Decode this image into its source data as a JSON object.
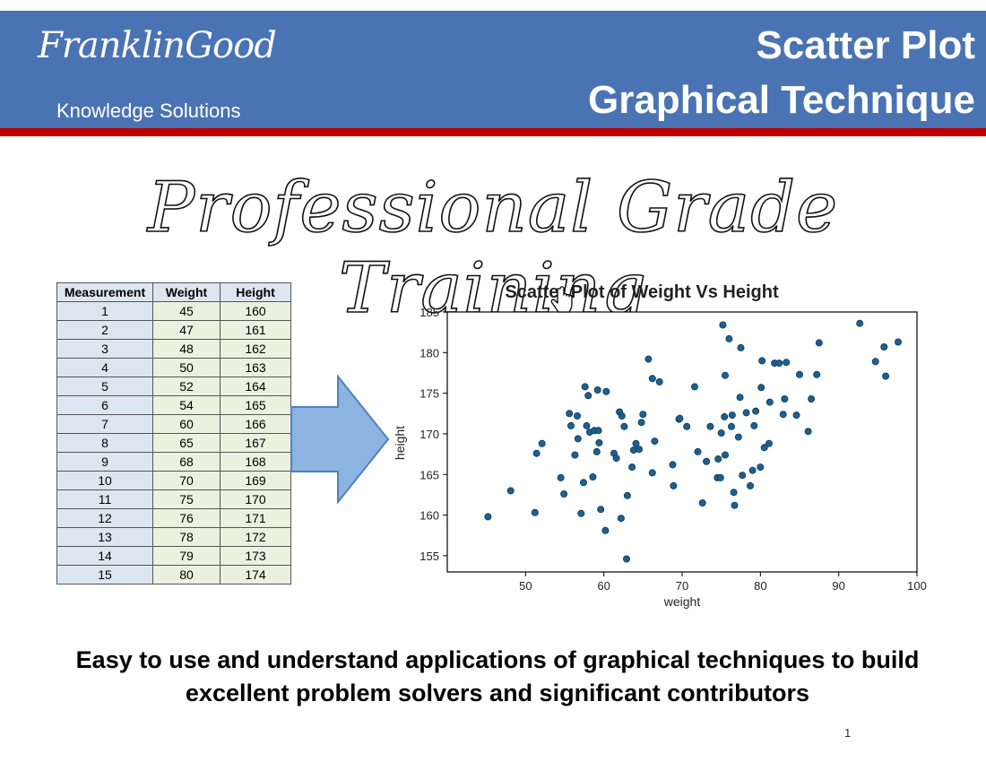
{
  "header": {
    "logo": "FranklinGood",
    "logo_subtitle": "Knowledge Solutions",
    "title_line1": "Scatter Plot",
    "title_line2": "Graphical Technique",
    "colors": {
      "band": "#4a73b3",
      "stripe": "#c00000"
    }
  },
  "banner": "Professional Grade Training",
  "table": {
    "headers": [
      "Measurement",
      "Weight",
      "Height"
    ],
    "rows": [
      [
        "1",
        "45",
        "160"
      ],
      [
        "2",
        "47",
        "161"
      ],
      [
        "3",
        "48",
        "162"
      ],
      [
        "4",
        "50",
        "163"
      ],
      [
        "5",
        "52",
        "164"
      ],
      [
        "6",
        "54",
        "165"
      ],
      [
        "7",
        "60",
        "166"
      ],
      [
        "8",
        "65",
        "167"
      ],
      [
        "9",
        "68",
        "168"
      ],
      [
        "10",
        "70",
        "169"
      ],
      [
        "11",
        "75",
        "170"
      ],
      [
        "12",
        "76",
        "171"
      ],
      [
        "13",
        "78",
        "172"
      ],
      [
        "14",
        "79",
        "173"
      ],
      [
        "15",
        "80",
        "174"
      ]
    ]
  },
  "chart_data": {
    "type": "scatter",
    "title": "Scatter Plot of Weight Vs Height",
    "xlabel": "weight",
    "ylabel": "height",
    "xlim": [
      40,
      100
    ],
    "ylim": [
      153,
      185
    ],
    "xticks": [
      50,
      60,
      70,
      80,
      90,
      100
    ],
    "yticks": [
      155,
      160,
      165,
      170,
      175,
      180,
      185
    ],
    "grid": false,
    "color": "#1f5f8f",
    "points": [
      [
        45.2,
        159.8
      ],
      [
        48.1,
        163.0
      ],
      [
        51.2,
        160.3
      ],
      [
        51.4,
        167.6
      ],
      [
        52.1,
        168.8
      ],
      [
        54.5,
        164.6
      ],
      [
        54.9,
        162.6
      ],
      [
        55.6,
        172.5
      ],
      [
        55.8,
        171.0
      ],
      [
        56.3,
        167.4
      ],
      [
        56.6,
        172.2
      ],
      [
        56.7,
        169.4
      ],
      [
        57.1,
        160.2
      ],
      [
        57.4,
        164.0
      ],
      [
        57.6,
        175.8
      ],
      [
        57.8,
        171.0
      ],
      [
        58.0,
        174.7
      ],
      [
        58.2,
        170.2
      ],
      [
        58.6,
        164.7
      ],
      [
        58.8,
        170.4
      ],
      [
        59.1,
        167.8
      ],
      [
        59.2,
        175.4
      ],
      [
        59.3,
        170.4
      ],
      [
        59.4,
        168.9
      ],
      [
        59.6,
        160.7
      ],
      [
        60.2,
        158.1
      ],
      [
        60.3,
        175.2
      ],
      [
        61.3,
        167.6
      ],
      [
        61.6,
        167.0
      ],
      [
        62.0,
        172.7
      ],
      [
        62.2,
        159.6
      ],
      [
        62.3,
        172.2
      ],
      [
        62.6,
        170.9
      ],
      [
        62.9,
        154.6
      ],
      [
        63.0,
        162.4
      ],
      [
        63.6,
        165.9
      ],
      [
        63.8,
        168.0
      ],
      [
        64.1,
        168.8
      ],
      [
        64.5,
        168.1
      ],
      [
        64.8,
        171.4
      ],
      [
        65.0,
        172.4
      ],
      [
        65.7,
        179.2
      ],
      [
        66.2,
        165.2
      ],
      [
        66.2,
        176.8
      ],
      [
        66.5,
        169.1
      ],
      [
        67.1,
        176.4
      ],
      [
        68.8,
        166.2
      ],
      [
        68.9,
        163.6
      ],
      [
        69.6,
        171.8
      ],
      [
        69.7,
        171.9
      ],
      [
        70.6,
        170.9
      ],
      [
        71.6,
        175.8
      ],
      [
        72.0,
        167.8
      ],
      [
        72.6,
        161.5
      ],
      [
        73.1,
        166.6
      ],
      [
        73.6,
        170.9
      ],
      [
        74.5,
        164.6
      ],
      [
        74.6,
        166.9
      ],
      [
        74.9,
        164.6
      ],
      [
        75.0,
        170.1
      ],
      [
        75.2,
        183.4
      ],
      [
        75.4,
        172.1
      ],
      [
        75.5,
        177.2
      ],
      [
        75.5,
        167.4
      ],
      [
        76.0,
        181.7
      ],
      [
        76.3,
        170.9
      ],
      [
        76.4,
        172.3
      ],
      [
        76.6,
        162.8
      ],
      [
        76.7,
        161.2
      ],
      [
        77.2,
        169.6
      ],
      [
        77.4,
        174.5
      ],
      [
        77.5,
        180.6
      ],
      [
        77.7,
        164.9
      ],
      [
        78.2,
        172.6
      ],
      [
        78.7,
        163.6
      ],
      [
        79.0,
        165.5
      ],
      [
        79.2,
        171.0
      ],
      [
        79.4,
        172.8
      ],
      [
        80.0,
        165.9
      ],
      [
        80.1,
        175.7
      ],
      [
        80.2,
        179.0
      ],
      [
        80.5,
        168.3
      ],
      [
        81.1,
        168.8
      ],
      [
        81.2,
        173.9
      ],
      [
        81.8,
        178.7
      ],
      [
        82.4,
        178.7
      ],
      [
        82.9,
        172.4
      ],
      [
        83.1,
        174.3
      ],
      [
        83.3,
        178.8
      ],
      [
        84.6,
        172.3
      ],
      [
        85.0,
        177.3
      ],
      [
        86.1,
        170.3
      ],
      [
        86.5,
        174.3
      ],
      [
        87.2,
        177.3
      ],
      [
        87.5,
        181.2
      ],
      [
        92.7,
        183.6
      ],
      [
        94.7,
        178.9
      ],
      [
        95.8,
        180.7
      ],
      [
        96.0,
        177.1
      ],
      [
        97.6,
        181.3
      ]
    ]
  },
  "footer": {
    "line1": "Easy to use and understand applications of graphical techniques to build",
    "line2": "excellent problem solvers and significant contributors"
  },
  "page_number": "1"
}
